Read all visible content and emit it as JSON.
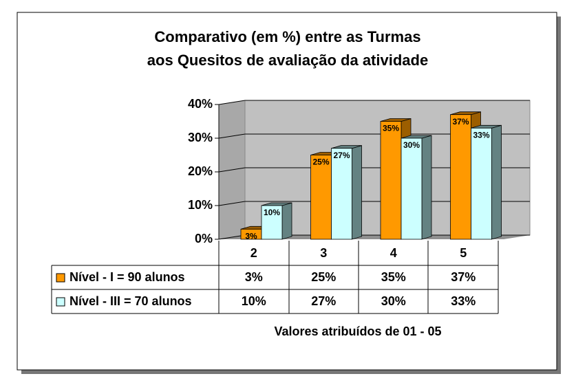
{
  "chart_data": {
    "type": "bar3d",
    "title": [
      "Comparativo (em %) entre as Turmas",
      "aos Quesitos de avaliação da atividade"
    ],
    "x_label": "Valores atribuídos de 01 - 05",
    "categories": [
      "2",
      "3",
      "4",
      "5"
    ],
    "series": [
      {
        "name": "Nível - I = 90 alunos",
        "color": "#ff9900",
        "side_color": "#9c5e00",
        "values": [
          3,
          25,
          35,
          37
        ],
        "value_labels": [
          "3%",
          "25%",
          "35%",
          "37%"
        ]
      },
      {
        "name": "Nível - III = 70 alunos",
        "color": "#ccffff",
        "side_color": "#648282",
        "values": [
          10,
          27,
          30,
          33
        ],
        "value_labels": [
          "10%",
          "27%",
          "30%",
          "33%"
        ]
      }
    ],
    "ylim": [
      0,
      40
    ],
    "yticks": [
      {
        "value": 0,
        "label": "0%"
      },
      {
        "value": 10,
        "label": "10%"
      },
      {
        "value": 20,
        "label": "20%"
      },
      {
        "value": 30,
        "label": "30%"
      },
      {
        "value": 40,
        "label": "40%"
      }
    ],
    "grid": true,
    "data_table": true
  }
}
